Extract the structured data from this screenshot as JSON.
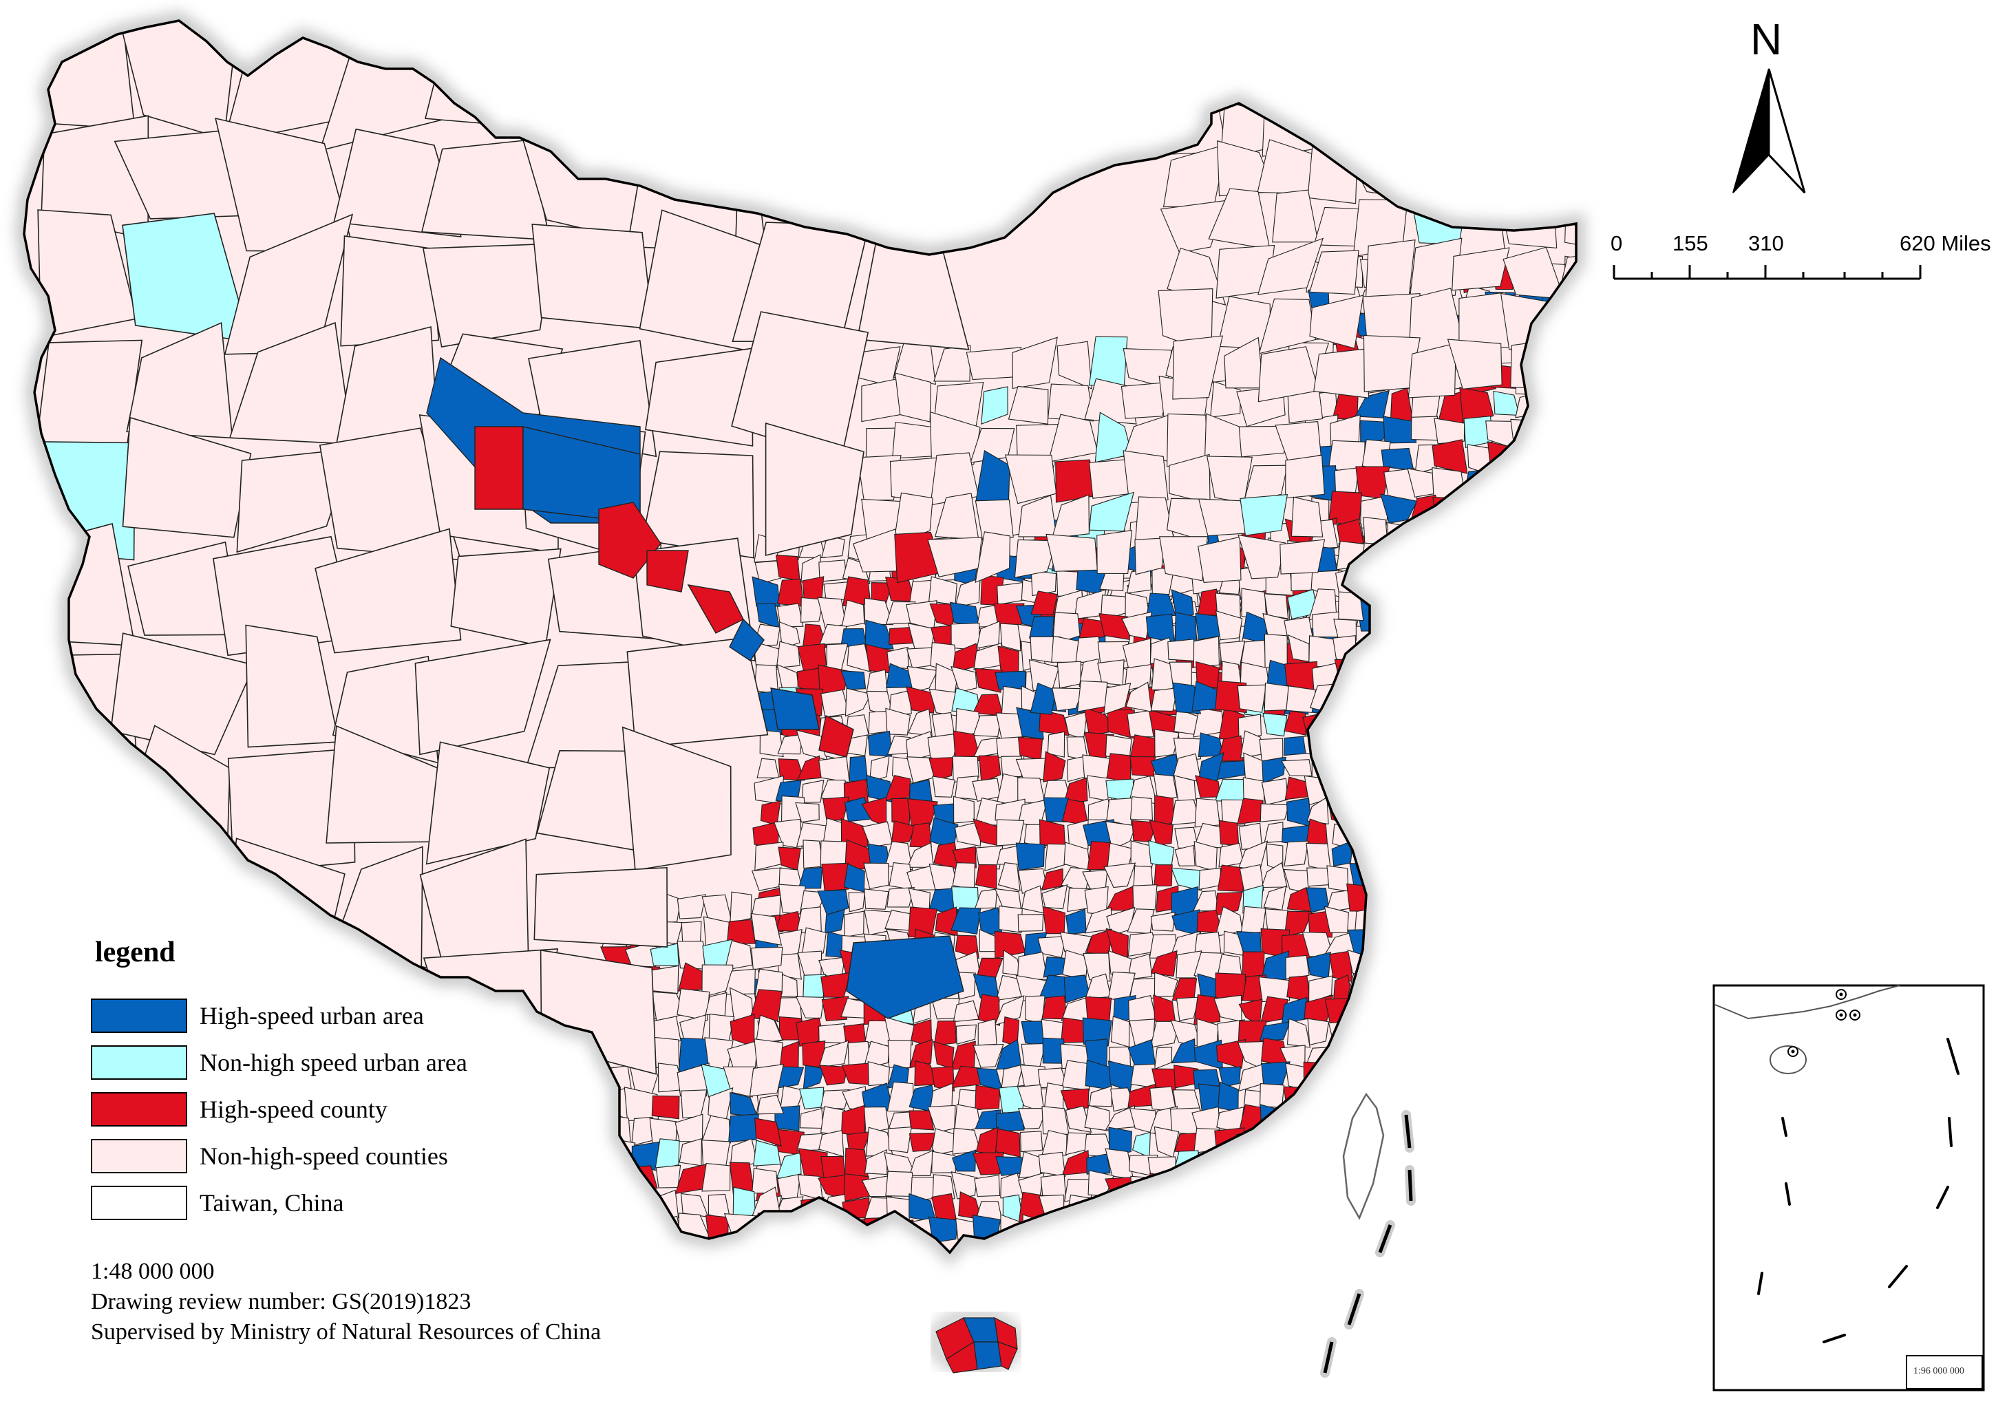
{
  "legend": {
    "title": "legend",
    "items": [
      {
        "label": "High-speed urban area",
        "color": "#0563bd"
      },
      {
        "label": "Non-high speed urban area",
        "color": "#b3ffff"
      },
      {
        "label": "High-speed county",
        "color": "#e01020"
      },
      {
        "label": "Non-high-speed counties",
        "color": "#ffebeb"
      },
      {
        "label": "Taiwan, China",
        "color": "#ffffff"
      }
    ]
  },
  "notes": {
    "scale_ratio": "1:48 000 000",
    "review_number": "Drawing review number: GS(2019)1823",
    "supervisor": "Supervised by Ministry of Natural Resources of China"
  },
  "north_arrow": {
    "letter": "N"
  },
  "scale_bar": {
    "labels": [
      "0",
      "155",
      "310",
      "620 Miles"
    ]
  },
  "inset": {
    "scale_text": "1:96 000 000"
  },
  "colors": {
    "high_speed_urban": "#0563bd",
    "non_high_speed_urban": "#b3ffff",
    "high_speed_county": "#e01020",
    "non_high_speed_county": "#ffebeb",
    "boundary": "#222222"
  }
}
